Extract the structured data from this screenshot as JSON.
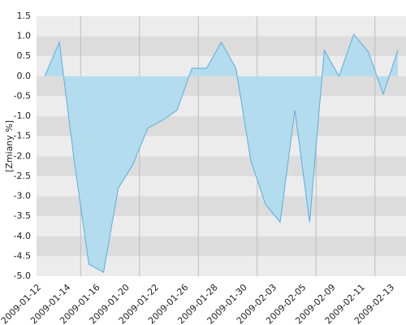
{
  "chart_data": {
    "type": "area",
    "y_label": "[Zmiany %]",
    "categories": [
      "2009-01-12",
      null,
      "2009-01-14",
      null,
      "2009-01-16",
      null,
      "2009-01-20",
      null,
      "2009-01-22",
      null,
      "2009-01-26",
      null,
      "2009-01-28",
      null,
      "2009-01-30",
      null,
      "2009-02-03",
      null,
      "2009-02-05",
      null,
      "2009-02-09",
      null,
      "2009-02-11",
      null,
      "2009-02-13"
    ],
    "values": [
      0,
      0.85,
      -2.1,
      -4.7,
      -4.9,
      -2.8,
      -2.2,
      -1.3,
      -1.1,
      -0.85,
      0.2,
      0.2,
      0.85,
      0.2,
      -2.1,
      -3.2,
      -3.65,
      -0.85,
      -3.65,
      0.65,
      0,
      1.05,
      0.6,
      -0.45,
      0.65
    ],
    "color": "#5aade0",
    "fill_color": "#b3dcee",
    "ylim": [
      -5,
      1.5
    ],
    "yticks": [
      1.5,
      {
        "value": 1,
        "label": "1.0"
      },
      0.5,
      {
        "value": 0,
        "label": "0.0"
      },
      -0.5,
      {
        "value": -1,
        "label": "-1.0"
      },
      -1.5,
      {
        "value": -2,
        "label": "-2.0"
      },
      -2.5,
      {
        "value": -3,
        "label": "-3.0"
      },
      -3.5,
      {
        "value": -4,
        "label": "-4.0"
      },
      -4.5,
      {
        "value": -5,
        "label": "-5.0"
      }
    ],
    "grid": true
  }
}
